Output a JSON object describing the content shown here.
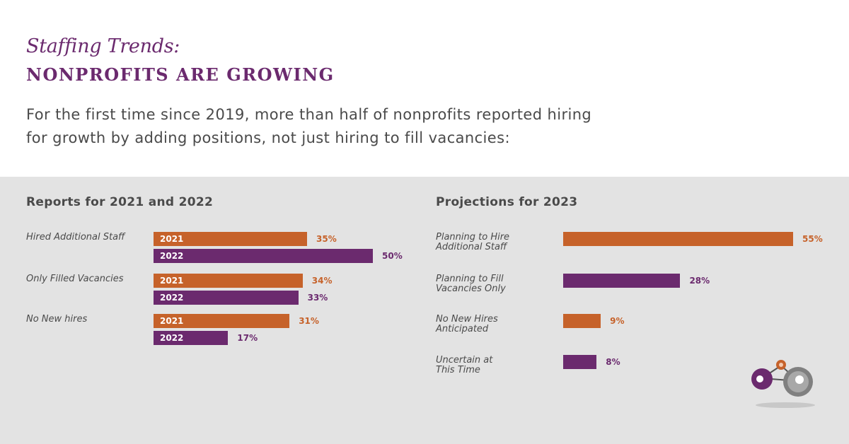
{
  "header": {
    "kicker": "Staffing Trends:",
    "headline": "NONPROFITS ARE GROWING",
    "intro": "For the first time since 2019, more than half of nonprofits reported hiring\nfor growth by adding positions, not just hiring to fill vacancies:"
  },
  "colors": {
    "orange": "#c6622a",
    "purple": "#6b2a6e",
    "panel": "#e3e3e3",
    "text": "#4a4a4a"
  },
  "chart_data": [
    {
      "type": "bar",
      "title": "Reports for 2021 and 2022",
      "orientation": "horizontal",
      "categories": [
        "Hired Additional Staff",
        "Only Filled Vacancies",
        "No New hires"
      ],
      "series": [
        {
          "name": "2021",
          "values": [
            35,
            34,
            31
          ],
          "labels": [
            "35%",
            "34%",
            "31%"
          ],
          "color": "#c6622a"
        },
        {
          "name": "2022",
          "values": [
            50,
            33,
            17
          ],
          "labels": [
            "50%",
            "33%",
            "17%"
          ],
          "color": "#6b2a6e"
        }
      ],
      "xlim": [
        0,
        50
      ]
    },
    {
      "type": "bar",
      "title": "Projections for 2023",
      "orientation": "horizontal",
      "categories": [
        "Planning to Hire\nAdditional Staff",
        "Planning to Fill\nVacancies Only",
        "No New Hires\nAnticipated",
        "Uncertain at\nThis Time"
      ],
      "values": [
        55,
        28,
        9,
        8
      ],
      "labels": [
        "55%",
        "28%",
        "9%",
        "8%"
      ],
      "colors": [
        "#c6622a",
        "#6b2a6e",
        "#c6622a",
        "#6b2a6e"
      ],
      "xlim": [
        0,
        55
      ]
    }
  ]
}
